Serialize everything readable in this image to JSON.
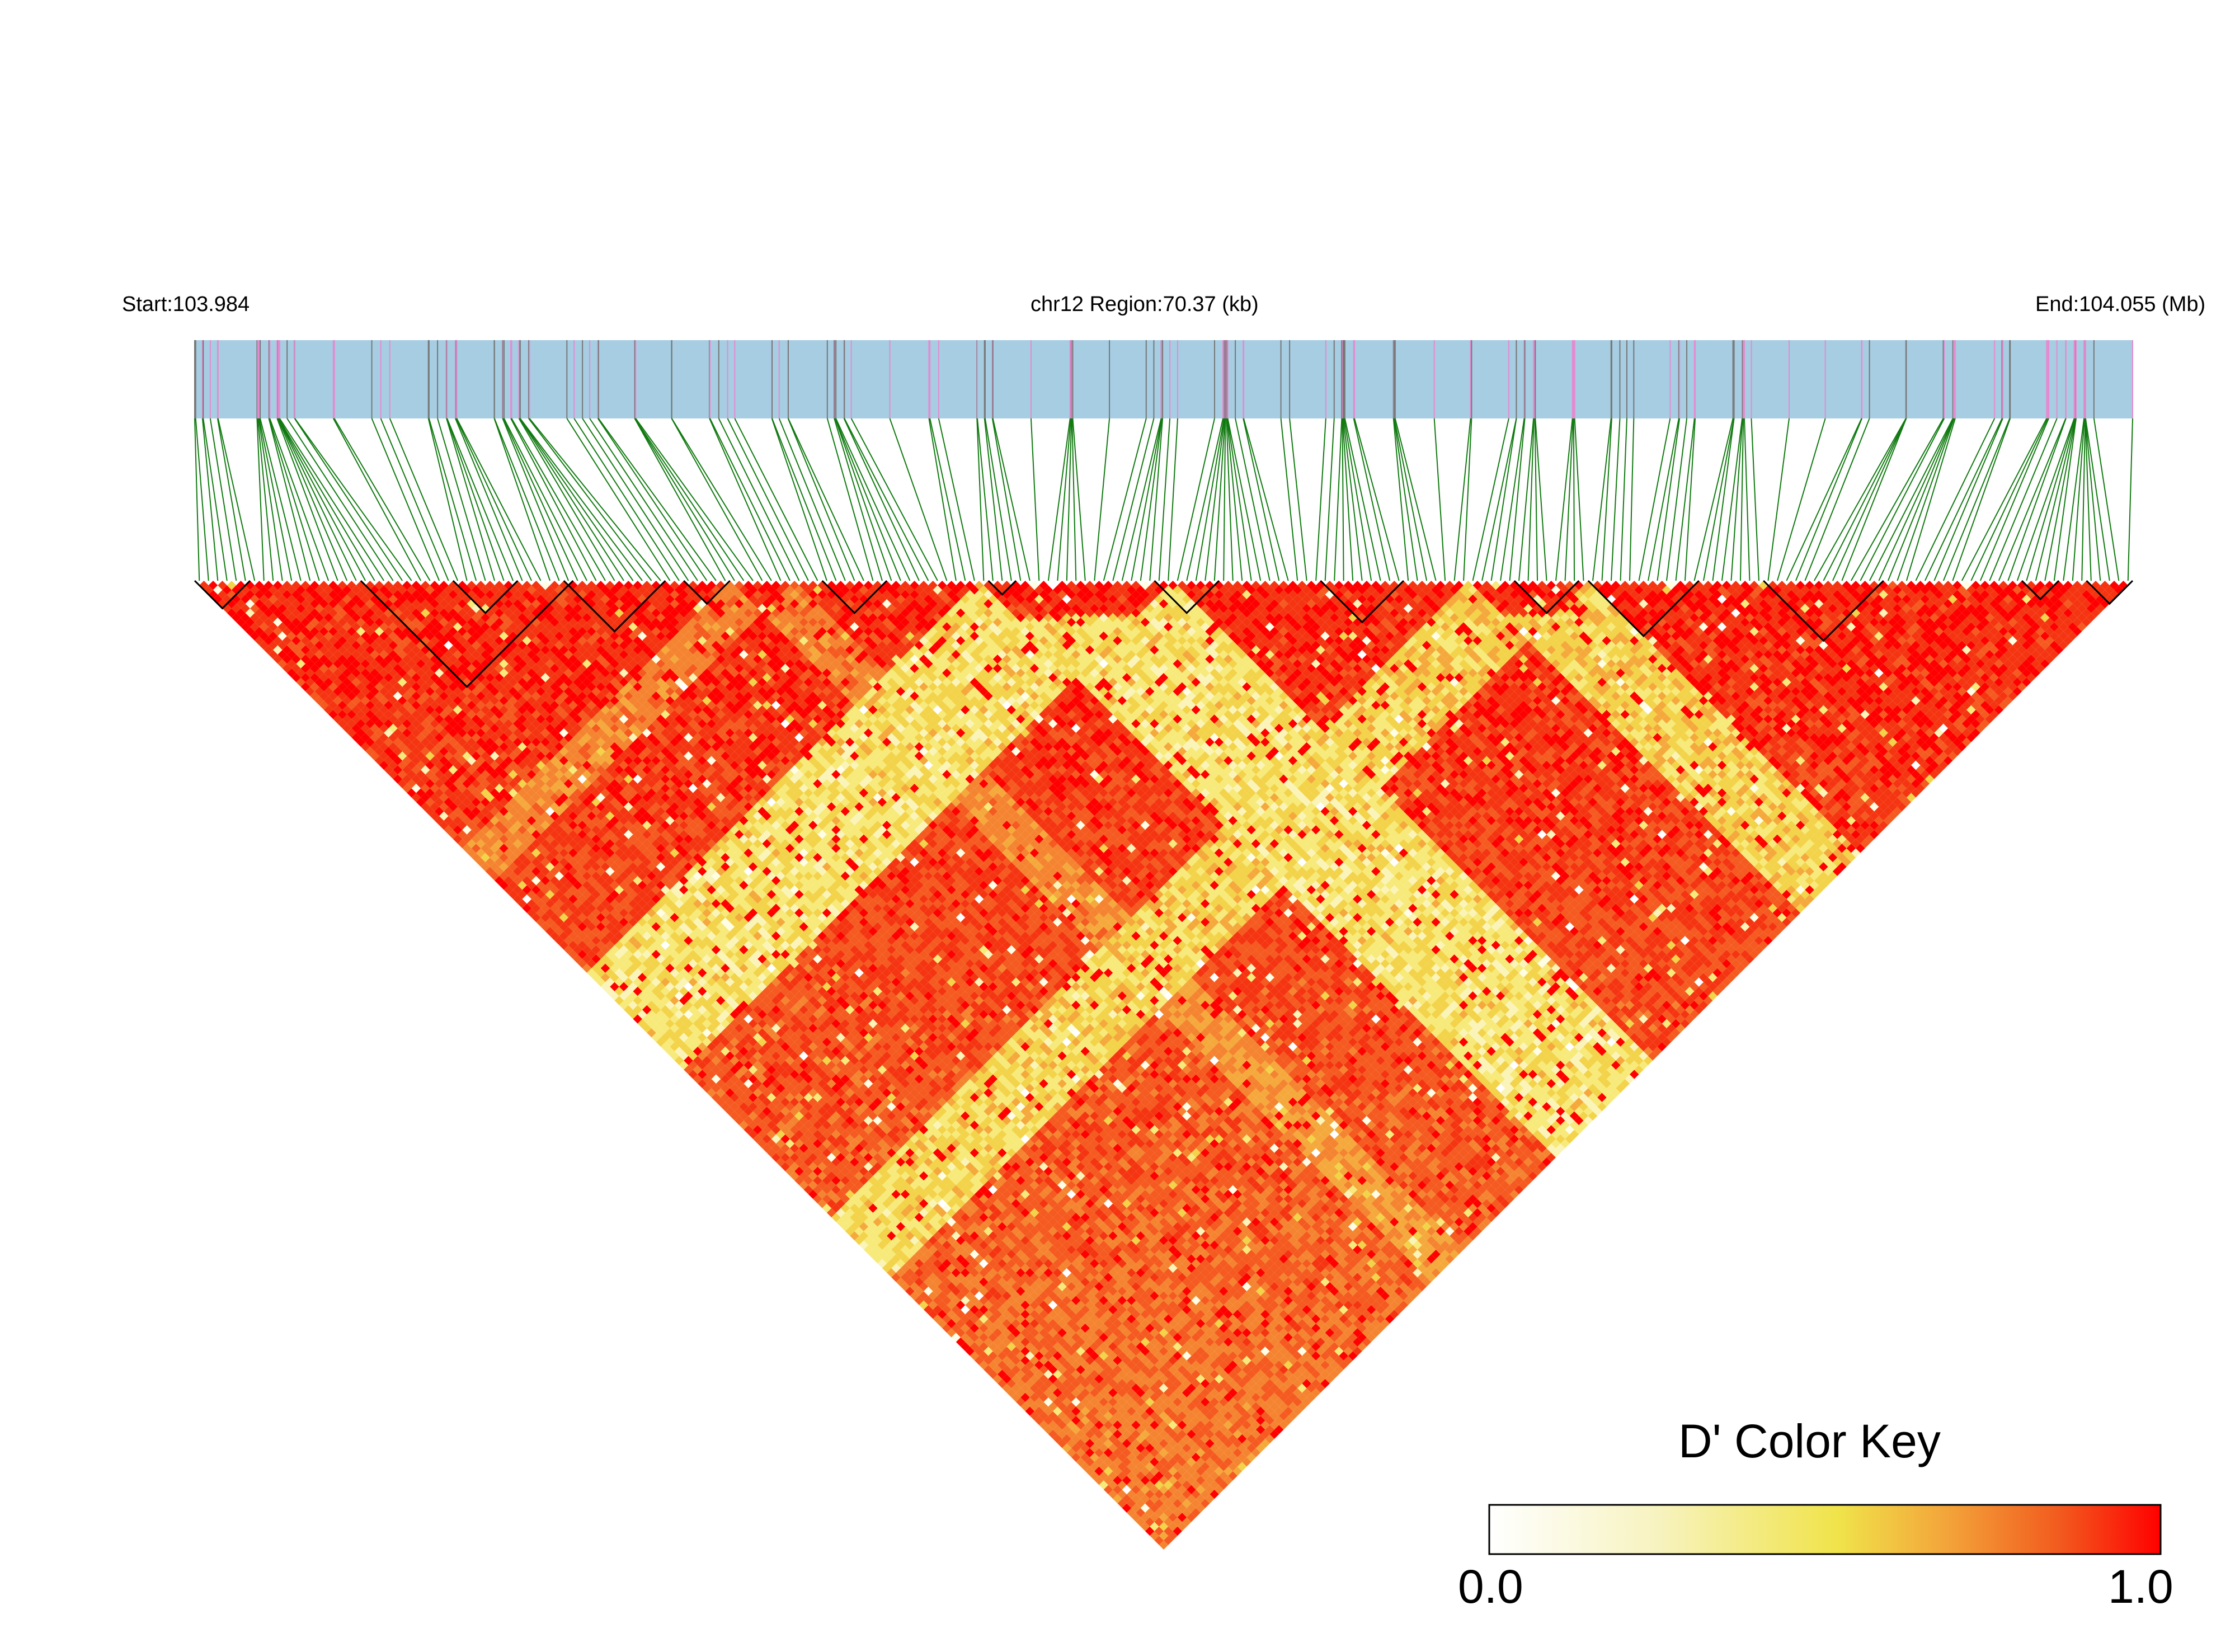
{
  "chart_data": {
    "type": "heatmap",
    "start_label": "Start:103.984",
    "region_label": "chr12 Region:70.37 (kb)",
    "end_label": "End:104.055 (Mb)",
    "snp_count": 210,
    "colors": {
      "track_background": "#a6cde2",
      "snp_line_gray": "#777777",
      "snp_line_pink": "#e58ad0",
      "connector": "#117a11",
      "block_outline": "#000000"
    },
    "color_key": {
      "title": "D' Color Key",
      "min_label": "0.0",
      "max_label": "1.0",
      "gradient": [
        "#ffffff",
        "#f7f3c0",
        "#f0e34a",
        "#f3a53a",
        "#f25a1e",
        "#ff0000"
      ]
    },
    "ld_structure_summary": "Mostly high D' (red); low-D' (white/yellow) bands involving SNP index groups ~85-105 and ~138-150"
  }
}
